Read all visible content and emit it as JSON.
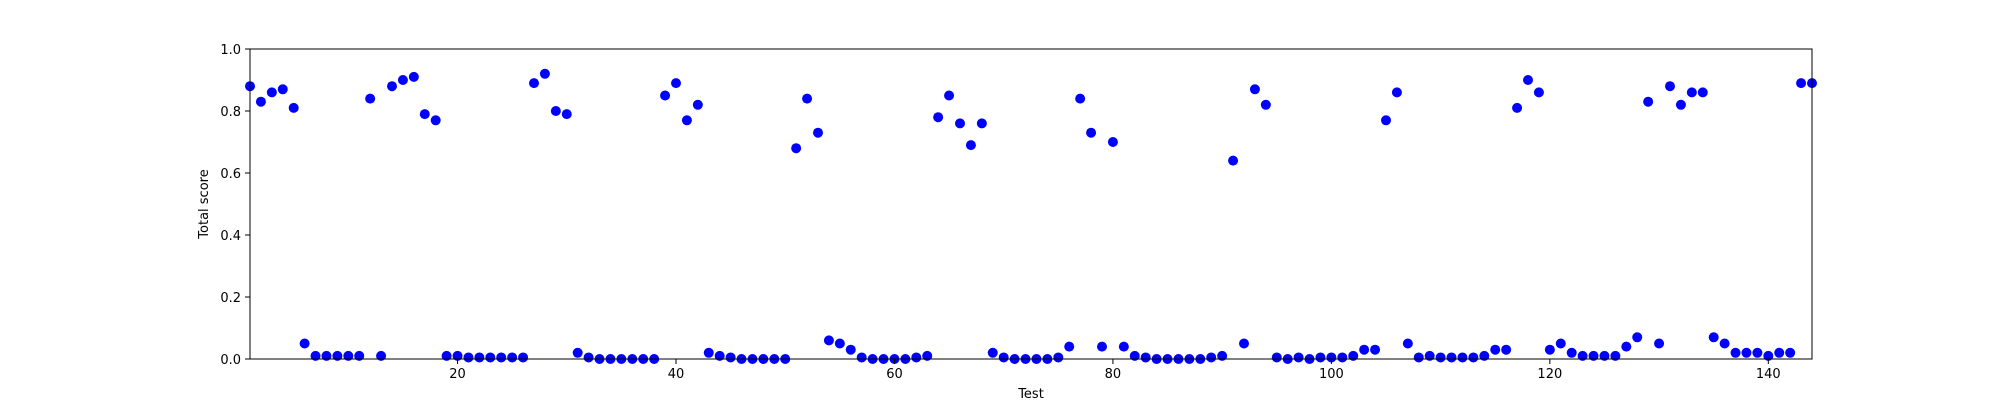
{
  "chart_data": {
    "type": "scatter",
    "xlabel": "Test",
    "ylabel": "Total score",
    "xlim": [
      1,
      144
    ],
    "ylim": [
      0.0,
      1.0
    ],
    "xticks": [
      20,
      40,
      60,
      80,
      100,
      120,
      140
    ],
    "xtick_labels": [
      "20",
      "40",
      "60",
      "80",
      "100",
      "120",
      "140"
    ],
    "yticks": [
      0.0,
      0.2,
      0.4,
      0.6,
      0.8,
      1.0
    ],
    "ytick_labels": [
      "0.0",
      "0.2",
      "0.4",
      "0.6",
      "0.8",
      "1.0"
    ],
    "grid": false,
    "marker_color": "#0000ff",
    "x": [
      1,
      2,
      3,
      4,
      5,
      6,
      7,
      8,
      9,
      10,
      11,
      12,
      13,
      14,
      15,
      16,
      17,
      18,
      19,
      20,
      21,
      22,
      23,
      24,
      25,
      26,
      27,
      28,
      29,
      30,
      31,
      32,
      33,
      34,
      35,
      36,
      37,
      38,
      39,
      40,
      41,
      42,
      43,
      44,
      45,
      46,
      47,
      48,
      49,
      50,
      51,
      52,
      53,
      54,
      55,
      56,
      57,
      58,
      59,
      60,
      61,
      62,
      63,
      64,
      65,
      66,
      67,
      68,
      69,
      70,
      71,
      72,
      73,
      74,
      75,
      76,
      77,
      78,
      79,
      80,
      81,
      82,
      83,
      84,
      85,
      86,
      87,
      88,
      89,
      90,
      91,
      92,
      93,
      94,
      95,
      96,
      97,
      98,
      99,
      100,
      101,
      102,
      103,
      104,
      105,
      106,
      107,
      108,
      109,
      110,
      111,
      112,
      113,
      114,
      115,
      116,
      117,
      118,
      119,
      120,
      121,
      122,
      123,
      124,
      125,
      126,
      127,
      128,
      129,
      130,
      131,
      132,
      133,
      134,
      135,
      136,
      137,
      138,
      139,
      140,
      141,
      142,
      143,
      144
    ],
    "y": [
      0.88,
      0.83,
      0.86,
      0.87,
      0.81,
      0.05,
      0.01,
      0.01,
      0.01,
      0.01,
      0.01,
      0.84,
      0.01,
      0.88,
      0.9,
      0.91,
      0.79,
      0.77,
      0.01,
      0.01,
      0.005,
      0.005,
      0.005,
      0.005,
      0.005,
      0.005,
      0.89,
      0.92,
      0.8,
      0.79,
      0.02,
      0.005,
      0.0,
      0.0,
      0.0,
      0.0,
      0.0,
      0.0,
      0.85,
      0.89,
      0.77,
      0.82,
      0.02,
      0.01,
      0.005,
      0.0,
      0.0,
      0.0,
      0.0,
      0.0,
      0.68,
      0.84,
      0.73,
      0.06,
      0.05,
      0.03,
      0.005,
      0.0,
      0.0,
      0.0,
      0.0,
      0.005,
      0.01,
      0.78,
      0.85,
      0.76,
      0.69,
      0.76,
      0.02,
      0.005,
      0.0,
      0.0,
      0.0,
      0.0,
      0.005,
      0.04,
      0.84,
      0.73,
      0.04,
      0.7,
      0.04,
      0.01,
      0.005,
      0.0,
      0.0,
      0.0,
      0.0,
      0.0,
      0.005,
      0.01,
      0.64,
      0.05,
      0.87,
      0.82,
      0.005,
      0.0,
      0.005,
      0.0,
      0.005,
      0.005,
      0.005,
      0.01,
      0.03,
      0.03,
      0.77,
      0.86,
      0.05,
      0.005,
      0.01,
      0.005,
      0.005,
      0.005,
      0.005,
      0.01,
      0.03,
      0.03,
      0.81,
      0.9,
      0.86,
      0.03,
      0.05,
      0.02,
      0.01,
      0.01,
      0.01,
      0.01,
      0.04,
      0.07,
      0.83,
      0.05,
      0.88,
      0.82,
      0.86,
      0.86,
      0.07,
      0.05,
      0.02,
      0.02,
      0.02,
      0.01,
      0.02,
      0.02,
      0.89,
      0.89
    ]
  }
}
